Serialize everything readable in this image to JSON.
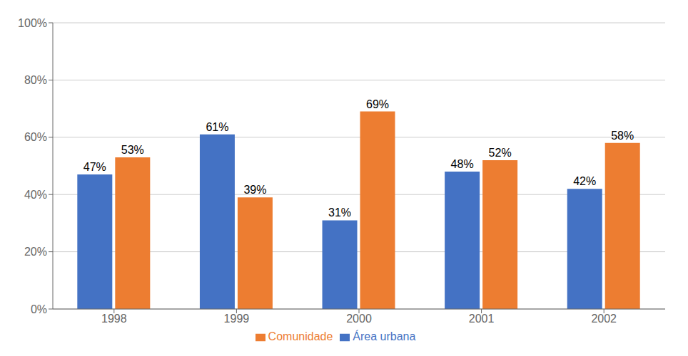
{
  "chart_data": {
    "type": "bar",
    "categories": [
      "1998",
      "1999",
      "2000",
      "2001",
      "2002"
    ],
    "series": [
      {
        "name": "Área urbana",
        "color": "#4472C4",
        "values": [
          47,
          61,
          31,
          48,
          42
        ],
        "value_labels": [
          "47%",
          "61%",
          "31%",
          "48%",
          "42%"
        ]
      },
      {
        "name": "Comunidade",
        "color": "#ED7D31",
        "values": [
          53,
          39,
          69,
          52,
          58
        ],
        "value_labels": [
          "53%",
          "39%",
          "69%",
          "52%",
          "58%"
        ]
      }
    ],
    "ylim": [
      0,
      100
    ],
    "yticks": [
      {
        "value": 0,
        "label": "0%"
      },
      {
        "value": 20,
        "label": "20%"
      },
      {
        "value": 40,
        "label": "40%"
      },
      {
        "value": 60,
        "label": "60%"
      },
      {
        "value": 80,
        "label": "80%"
      },
      {
        "value": 100,
        "label": "100%"
      }
    ],
    "grid": true,
    "legend": "bottom",
    "data_labels": true
  }
}
